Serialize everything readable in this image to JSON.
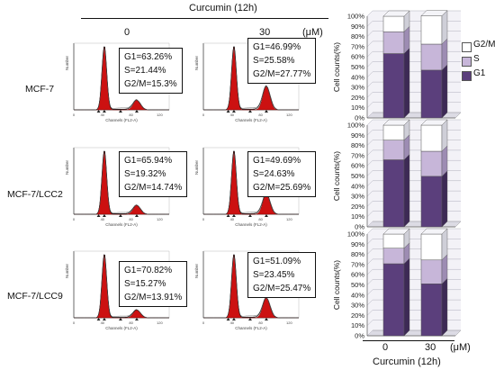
{
  "header": {
    "treatment": "Curcumin (12h)",
    "dose_0": "0",
    "dose_30": "30",
    "unit": "(μM)"
  },
  "rows": [
    {
      "label": "MCF-7",
      "stats": [
        {
          "g1": "G1=63.26%",
          "s": "S=21.44%",
          "g2m": "G2/M=15.3%"
        },
        {
          "g1": "G1=46.99%",
          "s": "S=25.58%",
          "g2m": "G2/M=27.77%"
        }
      ]
    },
    {
      "label": "MCF-7/LCC2",
      "stats": [
        {
          "g1": "G1=65.94%",
          "s": "S=19.32%",
          "g2m": "G2/M=14.74%"
        },
        {
          "g1": "G1=49.69%",
          "s": "S=24.63%",
          "g2m": "G2/M=25.69%"
        }
      ]
    },
    {
      "label": "MCF-7/LCC9",
      "stats": [
        {
          "g1": "G1=70.82%",
          "s": "S=15.27%",
          "g2m": "G2/M=13.91%"
        },
        {
          "g1": "G1=51.09%",
          "s": "S=23.45%",
          "g2m": "G2/M=25.47%"
        }
      ]
    }
  ],
  "histogram": {
    "xlabel": "Channels (FL2-A)",
    "ylabel": "Number",
    "xticks": [
      "0",
      "40",
      "80",
      "120"
    ]
  },
  "bar_axis": {
    "ylabel": "Cell counts(%)",
    "yticks": [
      "0%",
      "10%",
      "20%",
      "30%",
      "40%",
      "50%",
      "60%",
      "70%",
      "80%",
      "90%",
      "100%"
    ]
  },
  "bar_footer": {
    "dose_0": "0",
    "dose_30": "30",
    "unit": "(μM)",
    "treatment": "Curcumin (12h)"
  },
  "legend": [
    "G2/M",
    "S",
    "G1"
  ],
  "colors": {
    "G1": "#5b3f7c",
    "S": "#c7b6d9",
    "G2M": "#ffffff",
    "histogram_fill": "#cc1111",
    "bar_side": "#8f8f9a"
  },
  "chart_data": [
    {
      "type": "bar",
      "stacked": true,
      "title": "MCF-7",
      "categories": [
        "0",
        "30"
      ],
      "series": [
        {
          "name": "G1",
          "values": [
            63.26,
            46.99
          ]
        },
        {
          "name": "S",
          "values": [
            21.44,
            25.58
          ]
        },
        {
          "name": "G2/M",
          "values": [
            15.3,
            27.77
          ]
        }
      ],
      "ylabel": "Cell counts(%)",
      "ylim": [
        0,
        100
      ]
    },
    {
      "type": "bar",
      "stacked": true,
      "title": "MCF-7/LCC2",
      "categories": [
        "0",
        "30"
      ],
      "series": [
        {
          "name": "G1",
          "values": [
            65.94,
            49.69
          ]
        },
        {
          "name": "S",
          "values": [
            19.32,
            24.63
          ]
        },
        {
          "name": "G2/M",
          "values": [
            14.74,
            25.69
          ]
        }
      ],
      "ylabel": "Cell counts(%)",
      "ylim": [
        0,
        100
      ]
    },
    {
      "type": "bar",
      "stacked": true,
      "title": "MCF-7/LCC9",
      "categories": [
        "0",
        "30"
      ],
      "series": [
        {
          "name": "G1",
          "values": [
            70.82,
            51.09
          ]
        },
        {
          "name": "S",
          "values": [
            15.27,
            23.45
          ]
        },
        {
          "name": "G2/M",
          "values": [
            13.91,
            25.47
          ]
        }
      ],
      "ylabel": "Cell counts(%)",
      "ylim": [
        0,
        100
      ]
    }
  ]
}
